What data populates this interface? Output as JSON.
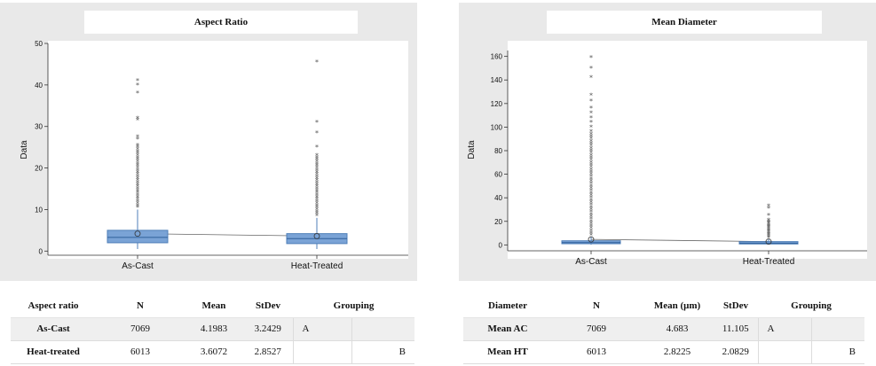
{
  "chart_data": [
    {
      "type": "box",
      "title": "Aspect Ratio",
      "ylabel": "Data",
      "ylim": [
        -1,
        50
      ],
      "yticks": [
        0,
        10,
        20,
        30,
        40,
        50
      ],
      "categories": [
        "As-Cast",
        "Heat-Treated"
      ],
      "boxes": [
        {
          "name": "As-Cast",
          "q1": 2.0,
          "median": 3.3,
          "q3": 5.0,
          "mean": 4.1983,
          "whisker_low": 0.5,
          "whisker_high": 10.0,
          "outliers": [
            10.5,
            11,
            11.5,
            12,
            12.5,
            13,
            13.5,
            14,
            14.5,
            15,
            15.5,
            16,
            16.5,
            17,
            17.5,
            18,
            18.5,
            19,
            19.5,
            20,
            20.5,
            21,
            21.5,
            22,
            22.5,
            23,
            23.5,
            24,
            24.5,
            25,
            25.5,
            27,
            27.5,
            31.5,
            32,
            38,
            40,
            41
          ]
        },
        {
          "name": "Heat-Treated",
          "q1": 1.8,
          "median": 3.0,
          "q3": 4.2,
          "mean": 3.6072,
          "whisker_low": 0.5,
          "whisker_high": 8.0,
          "outliers": [
            8.5,
            9,
            9.5,
            10,
            10.5,
            11,
            11.5,
            12,
            12.5,
            13,
            13.5,
            14,
            14.5,
            15,
            15.5,
            16,
            16.5,
            17,
            17.5,
            18,
            18.5,
            19,
            19.5,
            20,
            20.5,
            21,
            21.5,
            22,
            22.5,
            23,
            25,
            28.5,
            31,
            45.5
          ]
        }
      ]
    },
    {
      "type": "box",
      "title": "Mean Diameter",
      "ylabel": "Data",
      "ylim": [
        -5,
        165
      ],
      "yticks": [
        0,
        20,
        40,
        60,
        80,
        100,
        120,
        140,
        160
      ],
      "categories": [
        "As-Cast",
        "Heat-Treated"
      ],
      "boxes": [
        {
          "name": "As-Cast",
          "q1": 1.0,
          "median": 2.0,
          "q3": 3.5,
          "mean": 4.683,
          "whisker_low": 0.2,
          "whisker_high": 7.0,
          "outliers": [
            8,
            10,
            12,
            14,
            16,
            18,
            20,
            22,
            24,
            26,
            28,
            30,
            32,
            34,
            36,
            38,
            40,
            42,
            44,
            46,
            48,
            50,
            52,
            54,
            56,
            58,
            60,
            62,
            64,
            66,
            68,
            70,
            72,
            74,
            76,
            78,
            80,
            82,
            84,
            86,
            88,
            90,
            92,
            94,
            96,
            100,
            104,
            108,
            112,
            116,
            122,
            127,
            142,
            150,
            159
          ]
        },
        {
          "name": "Heat-Treated",
          "q1": 0.8,
          "median": 1.5,
          "q3": 2.8,
          "mean": 2.8225,
          "whisker_low": 0.2,
          "whisker_high": 5.0,
          "outliers": [
            6,
            7,
            8,
            9,
            10,
            11,
            12,
            13,
            14,
            15,
            16,
            17,
            18,
            19,
            20,
            21,
            25,
            31,
            33
          ]
        }
      ]
    }
  ],
  "tables": {
    "left": {
      "headers": [
        "Aspect ratio",
        "N",
        "Mean",
        "StDev",
        "Grouping"
      ],
      "rows": [
        {
          "label": "As-Cast",
          "n": "7069",
          "mean": "4.1983",
          "stdev": "3.2429",
          "group_a": "A",
          "group_b": ""
        },
        {
          "label": "Heat-treated",
          "n": "6013",
          "mean": "3.6072",
          "stdev": "2.8527",
          "group_a": "",
          "group_b": "B"
        }
      ]
    },
    "right": {
      "headers": [
        "Diameter",
        "N",
        "Mean (μm)",
        "StDev",
        "Grouping"
      ],
      "rows": [
        {
          "label": "Mean AC",
          "n": "7069",
          "mean": "4.683",
          "stdev": "11.105",
          "group_a": "A",
          "group_b": ""
        },
        {
          "label": "Mean HT",
          "n": "6013",
          "mean": "2.8225",
          "stdev": "2.0829",
          "group_a": "",
          "group_b": "B"
        }
      ]
    }
  },
  "colors": {
    "box_fill": "#7aa3d6",
    "box_stroke": "#4f7fb8",
    "median_line": "#2f5f9a",
    "outlier": "#555555",
    "plot_background": "#ffffff",
    "panel_background": "#e9e9e9"
  }
}
